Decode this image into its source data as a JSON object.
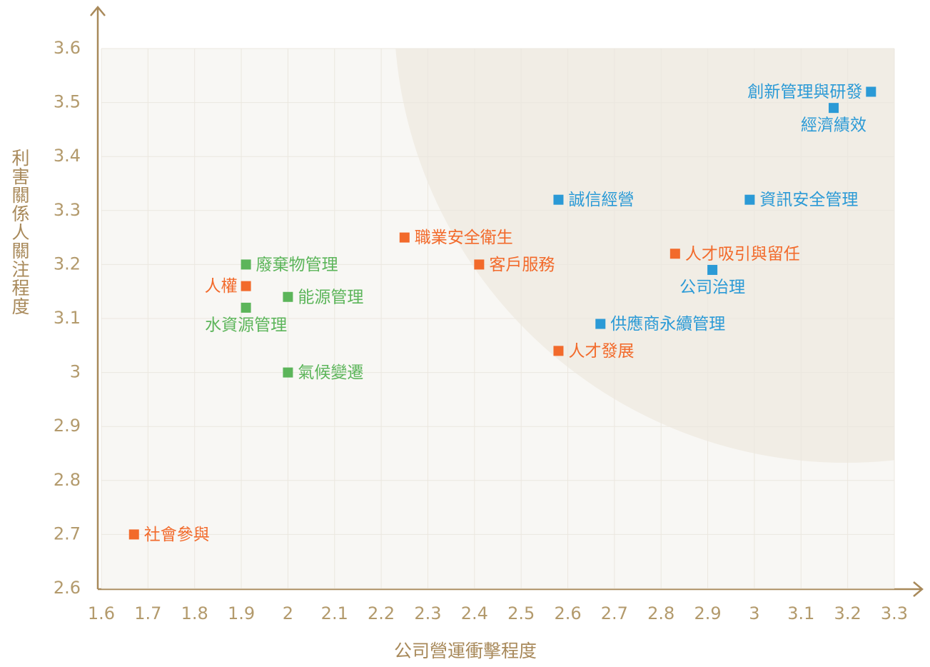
{
  "chart_data": {
    "type": "scatter",
    "x_label": "公司營運衝擊程度",
    "y_label": "利害關係人關注程度",
    "xlim": [
      1.6,
      3.3
    ],
    "ylim": [
      2.6,
      3.6
    ],
    "xticks": [
      1.6,
      1.7,
      1.8,
      1.9,
      2,
      2.1,
      2.2,
      2.3,
      2.4,
      2.5,
      2.6,
      2.7,
      2.8,
      2.9,
      3,
      3.1,
      3.2,
      3.3
    ],
    "yticks": [
      2.6,
      2.7,
      2.8,
      2.9,
      3,
      3.1,
      3.2,
      3.3,
      3.4,
      3.5,
      3.6
    ],
    "grid": true,
    "points": [
      {
        "label": "創新管理與研發",
        "x": 3.25,
        "y": 3.52,
        "color": "#2b9ad6"
      },
      {
        "label": "經濟績效",
        "x": 3.17,
        "y": 3.49,
        "color": "#2b9ad6"
      },
      {
        "label": "誠信經營",
        "x": 2.58,
        "y": 3.32,
        "color": "#2b9ad6"
      },
      {
        "label": "資訊安全管理",
        "x": 2.99,
        "y": 3.32,
        "color": "#2b9ad6"
      },
      {
        "label": "職業安全衛生",
        "x": 2.25,
        "y": 3.25,
        "color": "#f26a2b"
      },
      {
        "label": "客戶服務",
        "x": 2.41,
        "y": 3.2,
        "color": "#f26a2b"
      },
      {
        "label": "人才吸引與留任",
        "x": 2.83,
        "y": 3.22,
        "color": "#f26a2b"
      },
      {
        "label": "公司治理",
        "x": 2.91,
        "y": 3.19,
        "color": "#2b9ad6"
      },
      {
        "label": "供應商永續管理",
        "x": 2.67,
        "y": 3.09,
        "color": "#2b9ad6"
      },
      {
        "label": "人才發展",
        "x": 2.58,
        "y": 3.04,
        "color": "#f26a2b"
      },
      {
        "label": "廢棄物管理",
        "x": 1.91,
        "y": 3.2,
        "color": "#5cb55a"
      },
      {
        "label": "人權",
        "x": 1.91,
        "y": 3.16,
        "color": "#f26a2b"
      },
      {
        "label": "能源管理",
        "x": 2.0,
        "y": 3.14,
        "color": "#5cb55a"
      },
      {
        "label": "水資源管理",
        "x": 1.91,
        "y": 3.12,
        "color": "#5cb55a"
      },
      {
        "label": "氣候變遷",
        "x": 2.0,
        "y": 3.0,
        "color": "#5cb55a"
      },
      {
        "label": "社會參與",
        "x": 1.67,
        "y": 2.7,
        "color": "#f26a2b"
      }
    ]
  }
}
